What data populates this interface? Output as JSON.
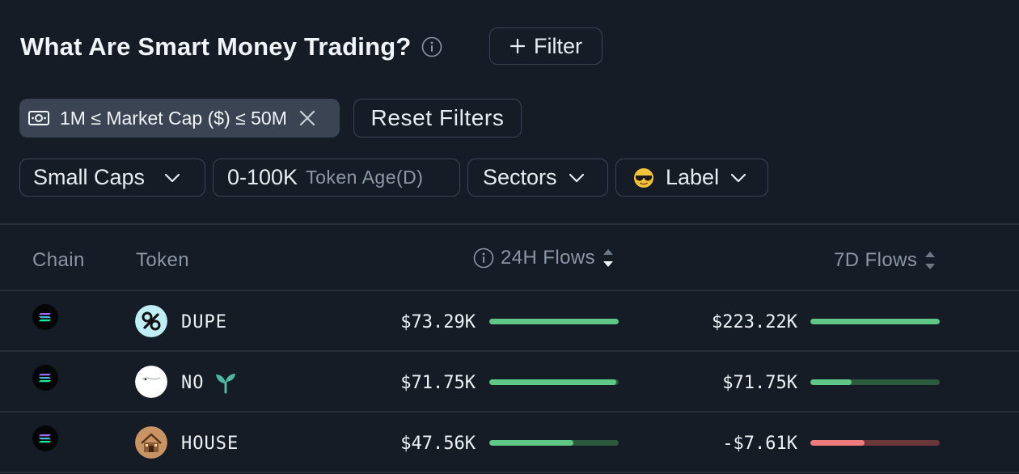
{
  "header": {
    "title": "What Are Smart Money Trading?",
    "filter_label": "Filter"
  },
  "active_filter": {
    "label": "1M ≤ Market Cap ($) ≤ 50M"
  },
  "reset_label": "Reset Filters",
  "quick_filters": {
    "caps": "Small Caps",
    "age_value": "0-100K",
    "age_label": "Token Age(D)",
    "sectors": "Sectors",
    "label": "Label"
  },
  "columns": {
    "chain": "Chain",
    "token": "Token",
    "flows_24h": "24H Flows",
    "flows_7d": "7D Flows"
  },
  "rows": [
    {
      "token": "DUPE",
      "flow_24h": "$73.29K",
      "flow_24h_fraction": 1.0,
      "flow_7d": "$223.22K",
      "flow_7d_fraction": 1.0,
      "flow_7d_sign": "positive"
    },
    {
      "token": "NO",
      "flow_24h": "$71.75K",
      "flow_24h_fraction": 0.98,
      "flow_7d": "$71.75K",
      "flow_7d_fraction": 0.32,
      "flow_7d_sign": "positive"
    },
    {
      "token": "HOUSE",
      "flow_24h": "$47.56K",
      "flow_24h_fraction": 0.65,
      "flow_7d": "-$7.61K",
      "flow_7d_fraction": 0.42,
      "flow_7d_sign": "negative"
    }
  ],
  "colors": {
    "positive": "#5fc886",
    "positive_track": "#2b5a3c",
    "negative": "#ef7b7b",
    "negative_track": "#6a3838"
  }
}
